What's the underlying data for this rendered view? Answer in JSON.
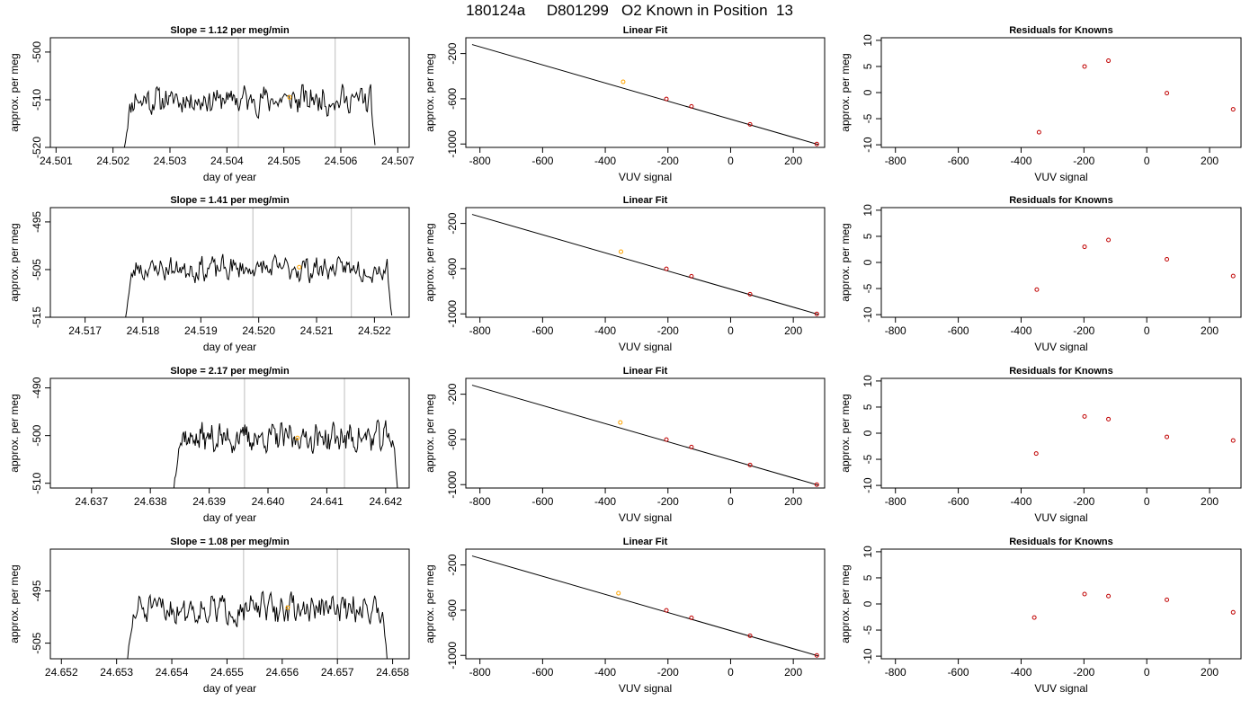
{
  "page_title": "180124a     D801299   O2 Known in Position  13",
  "colors": {
    "trace": "#000000",
    "marker_line": "#c8c8c8",
    "sample_mark": "#ffa500",
    "known_point": "#c00000",
    "frame": "#000000"
  },
  "chart_data": [
    {
      "type": "line",
      "panel": "timeseries",
      "row": 1,
      "title": "Slope =  1.12  per meg/min",
      "xlabel": "day of year",
      "ylabel": "approx. per meg",
      "xlim": [
        24.5009,
        24.5072
      ],
      "ylim": [
        -520,
        -497
      ],
      "xticks": [
        "24.501",
        "24.502",
        "24.503",
        "24.504",
        "24.505",
        "24.506",
        "24.507"
      ],
      "yticks": [
        "-500",
        "-510",
        "-520"
      ],
      "ytick_values": [
        -500,
        -510,
        -520
      ],
      "x_start": 24.5022,
      "x_end": 24.5066,
      "level": -510,
      "amplitude": 2.3,
      "seed": 11,
      "markers_x": [
        24.5042,
        24.5059
      ],
      "sample_mark": {
        "x": 24.5051,
        "y": -509.5
      }
    },
    {
      "type": "line",
      "panel": "linear_fit",
      "row": 1,
      "title": "Linear Fit",
      "xlabel": "VUV signal",
      "ylabel": "approx. per meg",
      "xlim": [
        -845,
        300
      ],
      "ylim": [
        -1030,
        -60
      ],
      "xticks": [
        "-800",
        "-600",
        "-400",
        "-200",
        "0",
        "200"
      ],
      "yticks": [
        "-200",
        "-600",
        "-1000"
      ],
      "ytick_values": [
        -200,
        -600,
        -1000
      ],
      "line": {
        "x": [
          -825,
          280
        ],
        "y": [
          -120,
          -1005
        ]
      },
      "points": [
        {
          "x": -343,
          "y": -450
        },
        {
          "x": -205,
          "y": -602
        },
        {
          "x": -125,
          "y": -667
        },
        {
          "x": 62,
          "y": -826
        },
        {
          "x": 275,
          "y": -1000
        }
      ]
    },
    {
      "type": "scatter",
      "panel": "residuals",
      "row": 1,
      "title": "Residuals for Knowns",
      "xlabel": "VUV signal",
      "ylabel": "approx. per meg",
      "xlim": [
        -845,
        300
      ],
      "ylim": [
        -10.5,
        10.5
      ],
      "xticks": [
        "-800",
        "-600",
        "-400",
        "-200",
        "0",
        "200"
      ],
      "yticks": [
        "10",
        "5",
        "0",
        "-5",
        "-10"
      ],
      "ytick_values": [
        10,
        5,
        0,
        -5,
        -10
      ],
      "points": [
        {
          "x": -343,
          "y": -7.6
        },
        {
          "x": -198,
          "y": 5.0
        },
        {
          "x": -122,
          "y": 6.1
        },
        {
          "x": 64,
          "y": -0.1
        },
        {
          "x": 275,
          "y": -3.2
        }
      ]
    },
    {
      "type": "line",
      "panel": "timeseries",
      "row": 2,
      "title": "Slope =  1.41  per meg/min",
      "xlabel": "day of year",
      "ylabel": "approx. per meg",
      "xlim": [
        24.5164,
        24.5226
      ],
      "ylim": [
        -515,
        -492
      ],
      "xticks": [
        "24.517",
        "24.518",
        "24.519",
        "24.520",
        "24.521",
        "24.522"
      ],
      "yticks": [
        "-495",
        "-505",
        "-515"
      ],
      "ytick_values": [
        -495,
        -505,
        -515
      ],
      "x_start": 24.5177,
      "x_end": 24.5223,
      "level": -504.8,
      "amplitude": 2.0,
      "seed": 23,
      "markers_x": [
        24.5199,
        24.5216
      ],
      "sample_mark": {
        "x": 24.5207,
        "y": -504.5
      }
    },
    {
      "type": "line",
      "panel": "linear_fit",
      "row": 2,
      "title": "Linear Fit",
      "xlabel": "VUV signal",
      "ylabel": "approx. per meg",
      "xlim": [
        -845,
        300
      ],
      "ylim": [
        -1030,
        -60
      ],
      "xticks": [
        "-800",
        "-600",
        "-400",
        "-200",
        "0",
        "200"
      ],
      "yticks": [
        "-200",
        "-600",
        "-1000"
      ],
      "ytick_values": [
        -200,
        -600,
        -1000
      ],
      "line": {
        "x": [
          -825,
          280
        ],
        "y": [
          -120,
          -1005
        ]
      },
      "points": [
        {
          "x": -350,
          "y": -450
        },
        {
          "x": -205,
          "y": -602
        },
        {
          "x": -125,
          "y": -667
        },
        {
          "x": 62,
          "y": -826
        },
        {
          "x": 275,
          "y": -1000
        }
      ]
    },
    {
      "type": "scatter",
      "panel": "residuals",
      "row": 2,
      "title": "Residuals for Knowns",
      "xlabel": "VUV signal",
      "ylabel": "approx. per meg",
      "xlim": [
        -845,
        300
      ],
      "ylim": [
        -10.5,
        10.5
      ],
      "xticks": [
        "-800",
        "-600",
        "-400",
        "-200",
        "0",
        "200"
      ],
      "yticks": [
        "10",
        "5",
        "0",
        "-5",
        "-10"
      ],
      "ytick_values": [
        10,
        5,
        0,
        -5,
        -10
      ],
      "points": [
        {
          "x": -350,
          "y": -5.2
        },
        {
          "x": -198,
          "y": 3.0
        },
        {
          "x": -122,
          "y": 4.3
        },
        {
          "x": 64,
          "y": 0.6
        },
        {
          "x": 275,
          "y": -2.6
        }
      ]
    },
    {
      "type": "line",
      "panel": "timeseries",
      "row": 3,
      "title": "Slope =  2.17  per meg/min",
      "xlabel": "day of year",
      "ylabel": "approx. per meg",
      "xlim": [
        24.6363,
        24.6424
      ],
      "ylim": [
        -511,
        -488
      ],
      "xticks": [
        "24.637",
        "24.638",
        "24.639",
        "24.640",
        "24.641",
        "24.642"
      ],
      "yticks": [
        "-490",
        "-500",
        "-510"
      ],
      "ytick_values": [
        -490,
        -500,
        -510
      ],
      "x_start": 24.6384,
      "x_end": 24.6422,
      "level": -500.5,
      "amplitude": 2.4,
      "seed": 37,
      "markers_x": [
        24.6396,
        24.6413
      ],
      "sample_mark": {
        "x": 24.6405,
        "y": -500.5
      }
    },
    {
      "type": "line",
      "panel": "linear_fit",
      "row": 3,
      "title": "Linear Fit",
      "xlabel": "VUV signal",
      "ylabel": "approx. per meg",
      "xlim": [
        -845,
        300
      ],
      "ylim": [
        -1030,
        -60
      ],
      "xticks": [
        "-800",
        "-600",
        "-400",
        "-200",
        "0",
        "200"
      ],
      "yticks": [
        "-200",
        "-600",
        "-1000"
      ],
      "ytick_values": [
        -200,
        -600,
        -1000
      ],
      "line": {
        "x": [
          -825,
          280
        ],
        "y": [
          -120,
          -1005
        ]
      },
      "points": [
        {
          "x": -352,
          "y": -450
        },
        {
          "x": -205,
          "y": -602
        },
        {
          "x": -125,
          "y": -667
        },
        {
          "x": 62,
          "y": -826
        },
        {
          "x": 275,
          "y": -1000
        }
      ]
    },
    {
      "type": "scatter",
      "panel": "residuals",
      "row": 3,
      "title": "Residuals for Knowns",
      "xlabel": "VUV signal",
      "ylabel": "approx. per meg",
      "xlim": [
        -845,
        300
      ],
      "ylim": [
        -10.5,
        10.5
      ],
      "xticks": [
        "-800",
        "-600",
        "-400",
        "-200",
        "0",
        "200"
      ],
      "yticks": [
        "10",
        "5",
        "0",
        "-5",
        "-10"
      ],
      "ytick_values": [
        10,
        5,
        0,
        -5,
        -10
      ],
      "points": [
        {
          "x": -352,
          "y": -3.9
        },
        {
          "x": -198,
          "y": 3.2
        },
        {
          "x": -122,
          "y": 2.7
        },
        {
          "x": 64,
          "y": -0.7
        },
        {
          "x": 275,
          "y": -1.4
        }
      ]
    },
    {
      "type": "line",
      "panel": "timeseries",
      "row": 4,
      "title": "Slope =  1.08  per meg/min",
      "xlabel": "day of year",
      "ylabel": "approx. per meg",
      "xlim": [
        24.6518,
        24.6583
      ],
      "ylim": [
        -508,
        -487
      ],
      "xticks": [
        "24.652",
        "24.653",
        "24.654",
        "24.655",
        "24.656",
        "24.657",
        "24.658"
      ],
      "yticks": [
        "-495",
        "-505"
      ],
      "ytick_values": [
        -495,
        -505
      ],
      "x_start": 24.6532,
      "x_end": 24.6579,
      "level": -498.5,
      "amplitude": 2.2,
      "seed": 51,
      "markers_x": [
        24.6553,
        24.657
      ],
      "sample_mark": {
        "x": 24.6561,
        "y": -498.2
      }
    },
    {
      "type": "line",
      "panel": "linear_fit",
      "row": 4,
      "title": "Linear Fit",
      "xlabel": "VUV signal",
      "ylabel": "approx. per meg",
      "xlim": [
        -845,
        300
      ],
      "ylim": [
        -1030,
        -60
      ],
      "xticks": [
        "-800",
        "-600",
        "-400",
        "-200",
        "0",
        "200"
      ],
      "yticks": [
        "-200",
        "-600",
        "-1000"
      ],
      "ytick_values": [
        -200,
        -600,
        -1000
      ],
      "line": {
        "x": [
          -825,
          280
        ],
        "y": [
          -120,
          -1005
        ]
      },
      "points": [
        {
          "x": -358,
          "y": -450
        },
        {
          "x": -205,
          "y": -602
        },
        {
          "x": -125,
          "y": -667
        },
        {
          "x": 62,
          "y": -826
        },
        {
          "x": 275,
          "y": -1000
        }
      ]
    },
    {
      "type": "scatter",
      "panel": "residuals",
      "row": 4,
      "title": "Residuals for Knowns",
      "xlabel": "VUV signal",
      "ylabel": "approx. per meg",
      "xlim": [
        -845,
        300
      ],
      "ylim": [
        -10.5,
        10.5
      ],
      "xticks": [
        "-800",
        "-600",
        "-400",
        "-200",
        "0",
        "200"
      ],
      "yticks": [
        "10",
        "5",
        "0",
        "-5",
        "-10"
      ],
      "ytick_values": [
        10,
        5,
        0,
        -5,
        -10
      ],
      "points": [
        {
          "x": -358,
          "y": -2.6
        },
        {
          "x": -198,
          "y": 1.9
        },
        {
          "x": -122,
          "y": 1.5
        },
        {
          "x": 64,
          "y": 0.8
        },
        {
          "x": 275,
          "y": -1.6
        }
      ]
    }
  ]
}
